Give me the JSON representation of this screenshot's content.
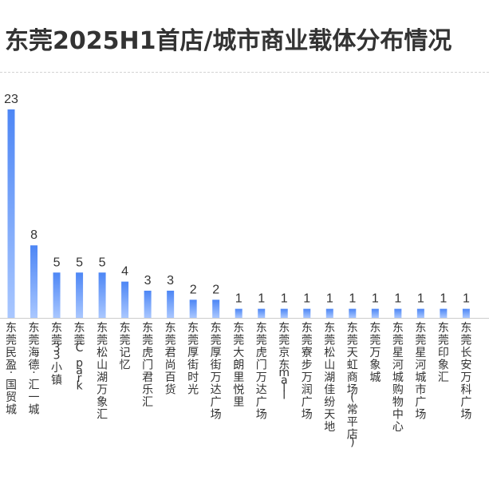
{
  "title": "东莞2025H1首店/城市商业载体分布情况",
  "colors": {
    "bar_gradient_top": "#4d86f5",
    "bar_gradient_bottom": "#a9c7ff",
    "axis": "#cccccc",
    "text": "#333333"
  },
  "chart_data": {
    "type": "bar",
    "title": "东莞2025H1首店/城市商业载体分布情况",
    "categories": [
      "东莞民盈·国贸城",
      "东莞海德·汇一城",
      "东莞33小镇",
      "东莞C park",
      "东莞松山湖万象汇",
      "东莞记忆",
      "东莞虎门君乐汇",
      "东莞君尚百货",
      "东莞厚街时光",
      "东莞厚街万达广场",
      "东莞大朗里悦里",
      "东莞虎门万达广场",
      "东莞京东mall",
      "东莞寮步万润广场",
      "东莞松山湖佳纷天地",
      "东莞天虹商场(常平店)",
      "东莞万象城",
      "东莞星河城购物中心",
      "东莞星河城市广场",
      "东莞印象汇",
      "东莞长安万科广场"
    ],
    "values": [
      23,
      8,
      5,
      5,
      5,
      4,
      3,
      3,
      2,
      2,
      1,
      1,
      1,
      1,
      1,
      1,
      1,
      1,
      1,
      1,
      1
    ],
    "ylim": [
      0,
      23
    ],
    "grid": false,
    "xlabel": "",
    "ylabel": ""
  }
}
